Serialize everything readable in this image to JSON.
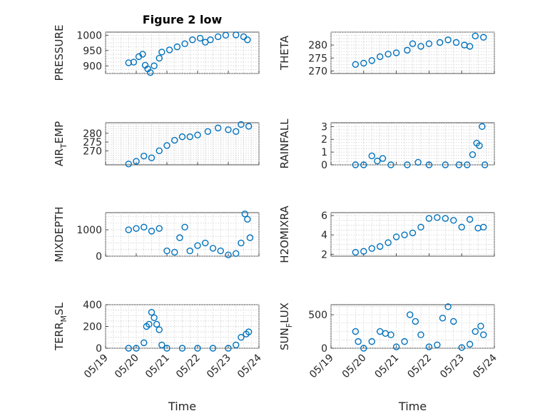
{
  "chart_data": [
    {
      "type": "scatter",
      "title": "Figure 2 low",
      "ylabel": "PRESSURE",
      "ylabel_sub": "",
      "ylabel_tail": "",
      "xlabel": "",
      "xlim": [
        "05/19",
        "05/24"
      ],
      "ylim": [
        875,
        1010
      ],
      "yticks": [
        900,
        950,
        1000
      ],
      "xticks": [],
      "grid": true,
      "color": "#0072BD",
      "points": [
        [
          "05/19 18:00",
          910
        ],
        [
          "05/19 22:00",
          912
        ],
        [
          "05/20 02:00",
          930
        ],
        [
          "05/20 05:00",
          938
        ],
        [
          "05/20 07:00",
          902
        ],
        [
          "05/20 09:00",
          890
        ],
        [
          "05/20 11:00",
          878
        ],
        [
          "05/20 14:00",
          900
        ],
        [
          "05/20 18:00",
          925
        ],
        [
          "05/20 20:00",
          945
        ],
        [
          "05/21 02:00",
          952
        ],
        [
          "05/21 08:00",
          962
        ],
        [
          "05/21 14:00",
          972
        ],
        [
          "05/21 20:00",
          985
        ],
        [
          "05/22 02:00",
          990
        ],
        [
          "05/22 06:00",
          977
        ],
        [
          "05/22 10:00",
          985
        ],
        [
          "05/22 16:00",
          995
        ],
        [
          "05/22 22:00",
          1000
        ],
        [
          "05/23 06:00",
          1001
        ],
        [
          "05/23 12:00",
          995
        ],
        [
          "05/23 15:00",
          985
        ]
      ]
    },
    {
      "type": "scatter",
      "title": "",
      "ylabel": "THETA",
      "ylabel_sub": "",
      "ylabel_tail": "",
      "xlabel": "",
      "xlim": [
        "05/19",
        "05/24"
      ],
      "ylim": [
        269,
        285
      ],
      "yticks": [
        270,
        275,
        280
      ],
      "xticks": [],
      "grid": true,
      "color": "#0072BD",
      "points": [
        [
          "05/19 18:00",
          272.5
        ],
        [
          "05/20 00:00",
          273
        ],
        [
          "05/20 06:00",
          274
        ],
        [
          "05/20 12:00",
          275.5
        ],
        [
          "05/20 18:00",
          276.5
        ],
        [
          "05/21 00:00",
          277
        ],
        [
          "05/21 08:00",
          278
        ],
        [
          "05/21 12:00",
          280.5
        ],
        [
          "05/21 18:00",
          279.5
        ],
        [
          "05/22 00:00",
          280.5
        ],
        [
          "05/22 08:00",
          281
        ],
        [
          "05/22 14:00",
          282
        ],
        [
          "05/22 20:00",
          281
        ],
        [
          "05/23 02:00",
          280
        ],
        [
          "05/23 06:00",
          279.5
        ],
        [
          "05/23 10:00",
          283.5
        ],
        [
          "05/23 16:00",
          283
        ]
      ]
    },
    {
      "type": "scatter",
      "title": "",
      "ylabel": "AIR",
      "ylabel_sub": "T",
      "ylabel_tail": "EMP",
      "xlabel": "",
      "xlim": [
        "05/19",
        "05/24"
      ],
      "ylim": [
        262,
        286
      ],
      "yticks": [
        270,
        275,
        280
      ],
      "xticks": [],
      "grid": true,
      "color": "#0072BD",
      "points": [
        [
          "05/19 18:00",
          262.5
        ],
        [
          "05/20 00:00",
          264
        ],
        [
          "05/20 06:00",
          267
        ],
        [
          "05/20 12:00",
          266
        ],
        [
          "05/20 18:00",
          270
        ],
        [
          "05/21 00:00",
          273
        ],
        [
          "05/21 06:00",
          276
        ],
        [
          "05/21 12:00",
          278
        ],
        [
          "05/21 18:00",
          278
        ],
        [
          "05/22 00:00",
          279
        ],
        [
          "05/22 08:00",
          281
        ],
        [
          "05/22 16:00",
          283
        ],
        [
          "05/23 00:00",
          282
        ],
        [
          "05/23 06:00",
          281
        ],
        [
          "05/23 10:00",
          285
        ],
        [
          "05/23 16:00",
          284
        ]
      ]
    },
    {
      "type": "scatter",
      "title": "",
      "ylabel": "RAINFALL",
      "ylabel_sub": "",
      "ylabel_tail": "",
      "xlabel": "",
      "xlim": [
        "05/19",
        "05/24"
      ],
      "ylim": [
        0,
        3.3
      ],
      "yticks": [
        0,
        1,
        2,
        3
      ],
      "xticks": [],
      "grid": true,
      "color": "#0072BD",
      "points": [
        [
          "05/19 18:00",
          0
        ],
        [
          "05/20 00:00",
          0
        ],
        [
          "05/20 06:00",
          0.7
        ],
        [
          "05/20 10:00",
          0.3
        ],
        [
          "05/20 14:00",
          0.5
        ],
        [
          "05/20 20:00",
          0
        ],
        [
          "05/21 08:00",
          0
        ],
        [
          "05/21 16:00",
          0.2
        ],
        [
          "05/22 00:00",
          0
        ],
        [
          "05/22 12:00",
          0
        ],
        [
          "05/22 22:00",
          0
        ],
        [
          "05/23 04:00",
          0
        ],
        [
          "05/23 08:00",
          0.8
        ],
        [
          "05/23 11:00",
          1.7
        ],
        [
          "05/23 13:00",
          1.5
        ],
        [
          "05/23 15:00",
          3.0
        ],
        [
          "05/23 17:00",
          0
        ]
      ]
    },
    {
      "type": "scatter",
      "title": "",
      "ylabel": "MIXDEPTH",
      "ylabel_sub": "",
      "ylabel_tail": "",
      "xlabel": "",
      "xlim": [
        "05/19",
        "05/24"
      ],
      "ylim": [
        0,
        1650
      ],
      "yticks": [
        0,
        1000
      ],
      "xticks": [],
      "grid": true,
      "color": "#0072BD",
      "points": [
        [
          "05/19 18:00",
          1000
        ],
        [
          "05/20 00:00",
          1050
        ],
        [
          "05/20 06:00",
          1100
        ],
        [
          "05/20 12:00",
          950
        ],
        [
          "05/20 18:00",
          1050
        ],
        [
          "05/21 00:00",
          200
        ],
        [
          "05/21 06:00",
          150
        ],
        [
          "05/21 10:00",
          700
        ],
        [
          "05/21 14:00",
          1100
        ],
        [
          "05/21 18:00",
          200
        ],
        [
          "05/22 00:00",
          400
        ],
        [
          "05/22 06:00",
          500
        ],
        [
          "05/22 12:00",
          300
        ],
        [
          "05/22 18:00",
          200
        ],
        [
          "05/23 00:00",
          50
        ],
        [
          "05/23 06:00",
          100
        ],
        [
          "05/23 10:00",
          500
        ],
        [
          "05/23 13:00",
          1600
        ],
        [
          "05/23 15:00",
          1400
        ],
        [
          "05/23 17:00",
          700
        ]
      ]
    },
    {
      "type": "scatter",
      "title": "",
      "ylabel": "H2OMIXRA",
      "ylabel_sub": "",
      "ylabel_tail": "",
      "xlabel": "",
      "xlim": [
        "05/19",
        "05/24"
      ],
      "ylim": [
        1.8,
        6.3
      ],
      "yticks": [
        2,
        4,
        6
      ],
      "xticks": [],
      "grid": true,
      "color": "#0072BD",
      "points": [
        [
          "05/19 18:00",
          2.2
        ],
        [
          "05/20 00:00",
          2.3
        ],
        [
          "05/20 06:00",
          2.6
        ],
        [
          "05/20 12:00",
          2.8
        ],
        [
          "05/20 18:00",
          3.2
        ],
        [
          "05/21 00:00",
          3.8
        ],
        [
          "05/21 06:00",
          4.0
        ],
        [
          "05/21 12:00",
          4.2
        ],
        [
          "05/21 18:00",
          4.8
        ],
        [
          "05/22 00:00",
          5.7
        ],
        [
          "05/22 06:00",
          5.8
        ],
        [
          "05/22 12:00",
          5.7
        ],
        [
          "05/22 18:00",
          5.5
        ],
        [
          "05/23 00:00",
          4.8
        ],
        [
          "05/23 06:00",
          5.6
        ],
        [
          "05/23 12:00",
          4.7
        ],
        [
          "05/23 16:00",
          4.8
        ]
      ]
    },
    {
      "type": "scatter",
      "title": "",
      "ylabel": "TERR",
      "ylabel_sub": "M",
      "ylabel_tail": "SL",
      "xlabel": "Time",
      "xlim": [
        "05/19",
        "05/24"
      ],
      "ylim": [
        0,
        400
      ],
      "yticks": [
        0,
        200,
        400
      ],
      "xticks": [
        "05/19",
        "05/20",
        "05/21",
        "05/22",
        "05/23",
        "05/24"
      ],
      "grid": true,
      "color": "#0072BD",
      "points": [
        [
          "05/19 18:00",
          0
        ],
        [
          "05/20 00:00",
          0
        ],
        [
          "05/20 06:00",
          50
        ],
        [
          "05/20 08:00",
          200
        ],
        [
          "05/20 10:00",
          220
        ],
        [
          "05/20 12:00",
          330
        ],
        [
          "05/20 14:00",
          280
        ],
        [
          "05/20 16:00",
          220
        ],
        [
          "05/20 18:00",
          170
        ],
        [
          "05/20 20:00",
          30
        ],
        [
          "05/21 00:00",
          0
        ],
        [
          "05/21 12:00",
          0
        ],
        [
          "05/22 00:00",
          0
        ],
        [
          "05/22 12:00",
          0
        ],
        [
          "05/23 00:00",
          0
        ],
        [
          "05/23 06:00",
          30
        ],
        [
          "05/23 10:00",
          100
        ],
        [
          "05/23 14:00",
          130
        ],
        [
          "05/23 16:00",
          150
        ]
      ]
    },
    {
      "type": "scatter",
      "title": "",
      "ylabel": "SUN",
      "ylabel_sub": "F",
      "ylabel_tail": "LUX",
      "xlabel": "Time",
      "xlim": [
        "05/19",
        "05/24"
      ],
      "ylim": [
        0,
        650
      ],
      "yticks": [
        0,
        500
      ],
      "xticks": [
        "05/19",
        "05/20",
        "05/21",
        "05/22",
        "05/23",
        "05/24"
      ],
      "grid": true,
      "color": "#0072BD",
      "points": [
        [
          "05/19 18:00",
          250
        ],
        [
          "05/19 20:00",
          100
        ],
        [
          "05/20 00:00",
          0
        ],
        [
          "05/20 06:00",
          100
        ],
        [
          "05/20 12:00",
          250
        ],
        [
          "05/20 16:00",
          220
        ],
        [
          "05/20 20:00",
          200
        ],
        [
          "05/21 00:00",
          20
        ],
        [
          "05/21 06:00",
          100
        ],
        [
          "05/21 10:00",
          500
        ],
        [
          "05/21 14:00",
          400
        ],
        [
          "05/21 18:00",
          200
        ],
        [
          "05/22 00:00",
          20
        ],
        [
          "05/22 06:00",
          50
        ],
        [
          "05/22 10:00",
          450
        ],
        [
          "05/22 14:00",
          620
        ],
        [
          "05/22 18:00",
          400
        ],
        [
          "05/23 00:00",
          10
        ],
        [
          "05/23 06:00",
          60
        ],
        [
          "05/23 10:00",
          250
        ],
        [
          "05/23 14:00",
          330
        ],
        [
          "05/23 16:00",
          200
        ]
      ]
    }
  ]
}
